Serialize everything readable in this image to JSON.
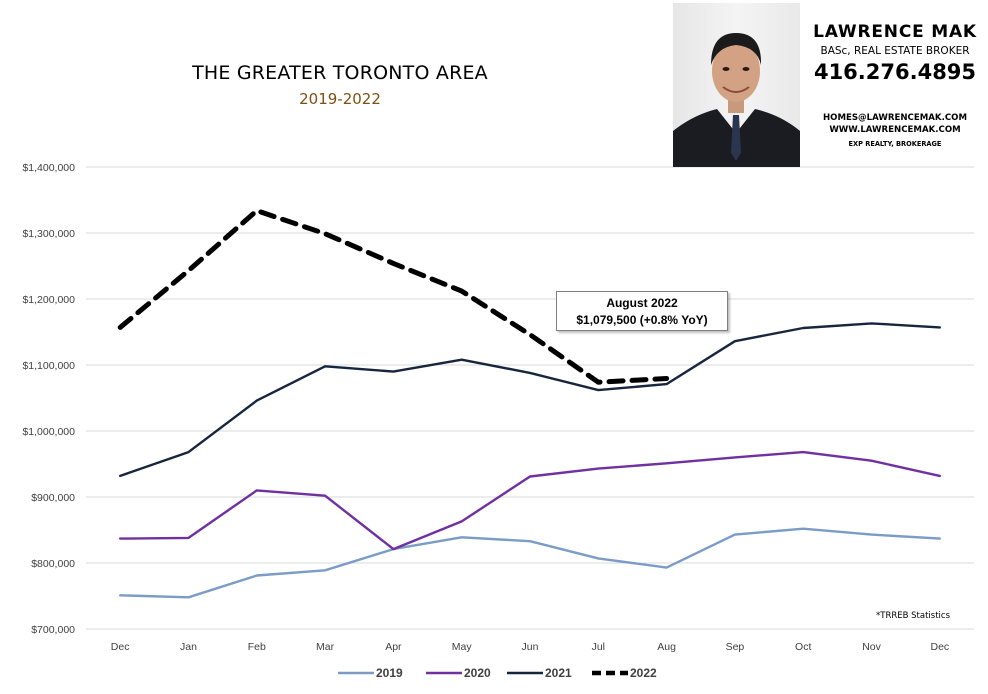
{
  "header": {
    "title": "THE GREATER TORONTO AREA",
    "subtitle": "2019-2022"
  },
  "agent": {
    "name": "LAWRENCE MAK",
    "credentials": "BASc, REAL ESTATE BROKER",
    "phone": "416.276.4895",
    "email": "HOMES@LAWRENCEMAK.COM",
    "website": "WWW.LAWRENCEMAK.COM",
    "brokerage": "EXP REALTY, BROKERAGE"
  },
  "callout": {
    "line1": "August 2022",
    "line2": "$1,079,500 (+0.8% YoY)"
  },
  "footnote": "*TRREB Statistics",
  "colors": {
    "subtitle": "#7f4f12",
    "s2019": "#7a9cc6",
    "s2020": "#7030a0",
    "s2021": "#17263d",
    "s2022": "#000000",
    "grid": "#d9d9d9",
    "axis_text": "#404040"
  },
  "chart_data": {
    "type": "line",
    "categories": [
      "Dec",
      "Jan",
      "Feb",
      "Mar",
      "Apr",
      "May",
      "Jun",
      "Jul",
      "Aug",
      "Sep",
      "Oct",
      "Nov",
      "Dec"
    ],
    "ylim": [
      700000,
      1400000
    ],
    "yticks": [
      700000,
      800000,
      900000,
      1000000,
      1100000,
      1200000,
      1300000,
      1400000
    ],
    "ytick_labels": [
      "$700,000",
      "$800,000",
      "$900,000",
      "$1,000,000",
      "$1,100,000",
      "$1,200,000",
      "$1,300,000",
      "$1,400,000"
    ],
    "grid": true,
    "legend_position": "bottom",
    "series": [
      {
        "name": "2019",
        "color": "#7a9cc6",
        "dashed": false,
        "values": [
          751000,
          748000,
          781000,
          789000,
          821000,
          839000,
          833000,
          807000,
          793000,
          843000,
          852000,
          843000,
          837000
        ]
      },
      {
        "name": "2020",
        "color": "#7030a0",
        "dashed": false,
        "values": [
          837000,
          838000,
          910000,
          902000,
          821000,
          863000,
          931000,
          943000,
          951000,
          960000,
          968000,
          955000,
          932000
        ]
      },
      {
        "name": "2021",
        "color": "#17263d",
        "dashed": false,
        "values": [
          932000,
          968000,
          1046000,
          1098000,
          1090000,
          1108000,
          1088000,
          1062000,
          1071000,
          1136000,
          1156000,
          1163000,
          1157000
        ]
      },
      {
        "name": "2022",
        "color": "#000000",
        "dashed": true,
        "values": [
          1157000,
          1243000,
          1334000,
          1299000,
          1254000,
          1212000,
          1146000,
          1074000,
          1079500,
          null,
          null,
          null,
          null
        ]
      }
    ]
  }
}
